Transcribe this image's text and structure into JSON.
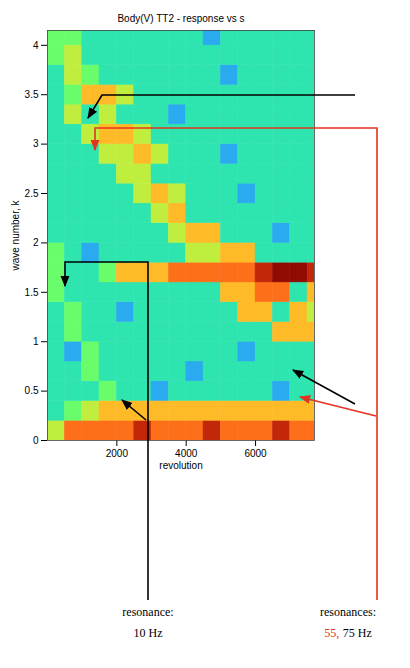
{
  "chart_data": {
    "type": "heatmap",
    "title": "Body(V) TT2 - response vs s",
    "x_label": "revolution",
    "y_label": "wave number, k",
    "xlim": [
      0,
      7700
    ],
    "ylim": [
      0,
      4.15
    ],
    "xticks": [
      2000,
      4000,
      6000
    ],
    "yticks": [
      0,
      0.5,
      1,
      1.5,
      2,
      2.5,
      3,
      3.5,
      4
    ],
    "x_bins": [
      0,
      500,
      1000,
      1500,
      2000,
      2500,
      3000,
      3500,
      4000,
      4500,
      5000,
      5500,
      6000,
      6500,
      7000,
      7500,
      8000
    ],
    "y_bins": [
      0,
      0.2,
      0.4,
      0.6,
      0.8,
      1,
      1.2,
      1.4,
      1.6,
      1.8,
      2,
      2.2,
      2.4,
      2.6,
      2.8,
      3,
      3.2,
      3.4,
      3.6,
      3.8,
      4,
      4.2
    ],
    "cells": [
      [
        5,
        7,
        7,
        7,
        7,
        8,
        7,
        7,
        7,
        8,
        7,
        7,
        7,
        8,
        7,
        7
      ],
      [
        3,
        4,
        5,
        6,
        6,
        6,
        6,
        6,
        6,
        6,
        6,
        6,
        6,
        6,
        6,
        6
      ],
      [
        3,
        3,
        3,
        4,
        3,
        3,
        2,
        3,
        3,
        3,
        3,
        3,
        3,
        2,
        3,
        3
      ],
      [
        3,
        3,
        4,
        3,
        3,
        3,
        3,
        3,
        2,
        3,
        3,
        3,
        3,
        3,
        3,
        3
      ],
      [
        3,
        2,
        4,
        3,
        3,
        3,
        3,
        3,
        3,
        3,
        3,
        2,
        3,
        3,
        3,
        3
      ],
      [
        3,
        4,
        3,
        3,
        3,
        3,
        3,
        3,
        3,
        3,
        3,
        3,
        3,
        6,
        6,
        6
      ],
      [
        3,
        4,
        3,
        3,
        2,
        3,
        3,
        3,
        3,
        3,
        3,
        6,
        6,
        3,
        6,
        5
      ],
      [
        4,
        3,
        3,
        3,
        3,
        3,
        3,
        3,
        3,
        3,
        6,
        6,
        7,
        7,
        3,
        6
      ],
      [
        4,
        3,
        3,
        4,
        6,
        6,
        6,
        7,
        7,
        7,
        7,
        7,
        8,
        9,
        9,
        8
      ],
      [
        4,
        3,
        2,
        3,
        3,
        3,
        3,
        3,
        5,
        5,
        6,
        6,
        3,
        3,
        3,
        3
      ],
      [
        3,
        3,
        3,
        3,
        3,
        3,
        3,
        5,
        6,
        6,
        3,
        3,
        3,
        2,
        3,
        3
      ],
      [
        3,
        3,
        3,
        3,
        3,
        3,
        5,
        6,
        3,
        3,
        3,
        3,
        3,
        3,
        3,
        3
      ],
      [
        3,
        3,
        3,
        3,
        3,
        5,
        6,
        5,
        3,
        3,
        3,
        2,
        3,
        3,
        3,
        3
      ],
      [
        3,
        3,
        3,
        3,
        5,
        5,
        3,
        3,
        3,
        3,
        3,
        3,
        3,
        3,
        3,
        3
      ],
      [
        3,
        3,
        3,
        5,
        5,
        6,
        5,
        3,
        3,
        3,
        2,
        3,
        3,
        3,
        3,
        3
      ],
      [
        3,
        3,
        5,
        6,
        6,
        5,
        3,
        3,
        3,
        3,
        3,
        3,
        3,
        3,
        3,
        3
      ],
      [
        3,
        5,
        3,
        5,
        3,
        3,
        3,
        2,
        3,
        3,
        3,
        3,
        3,
        3,
        3,
        3
      ],
      [
        3,
        4,
        6,
        6,
        5,
        3,
        3,
        3,
        3,
        3,
        3,
        3,
        3,
        3,
        3,
        3
      ],
      [
        3,
        5,
        4,
        3,
        3,
        3,
        3,
        3,
        3,
        3,
        2,
        3,
        3,
        3,
        3,
        3
      ],
      [
        4,
        5,
        3,
        3,
        3,
        3,
        3,
        3,
        3,
        3,
        3,
        3,
        3,
        3,
        3,
        3
      ],
      [
        4,
        4,
        3,
        3,
        3,
        3,
        3,
        3,
        3,
        2,
        3,
        3,
        3,
        3,
        3,
        3
      ]
    ],
    "annotations": [
      {
        "text": "resonance:",
        "detail": [
          {
            "text": "10 Hz",
            "color": "#000000"
          }
        ]
      },
      {
        "text": "resonances:",
        "detail": [
          {
            "text": "55,",
            "color": "#e3341f"
          },
          {
            "text": "75 Hz",
            "color": "#000000"
          }
        ]
      }
    ]
  }
}
